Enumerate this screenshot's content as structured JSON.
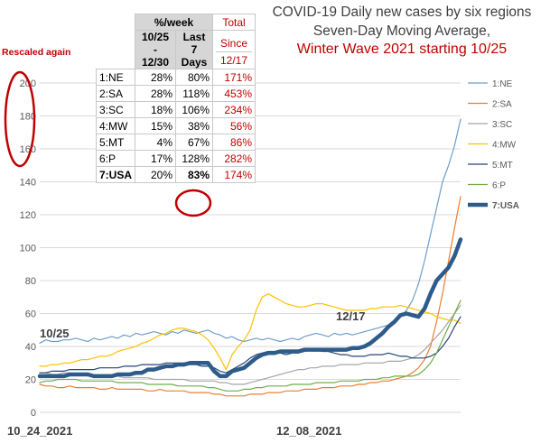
{
  "title_lines": [
    "COVID-19 Daily new cases by six regions",
    "Seven-Day Moving Average,"
  ],
  "title_red": "Winter Wave 2021 starting 10/25",
  "rescaled_note": "Rescaled again",
  "annotations": {
    "start": "10/25",
    "mid": "12/17"
  },
  "table": {
    "header_week": "%/week",
    "header_total": "Total",
    "col1_header": [
      "10/25",
      "-",
      "12/30"
    ],
    "col2_header": [
      "Last",
      "7",
      "Days"
    ],
    "col3_header": [
      "Since",
      "12/17"
    ],
    "rows": [
      {
        "region": "1:NE",
        "c1": "28%",
        "c2": "80%",
        "c3": "171%"
      },
      {
        "region": "2:SA",
        "c1": "28%",
        "c2": "118%",
        "c3": "453%"
      },
      {
        "region": "3:SC",
        "c1": "18%",
        "c2": "106%",
        "c3": "234%"
      },
      {
        "region": "4:MW",
        "c1": "15%",
        "c2": "38%",
        "c3": "56%"
      },
      {
        "region": "5:MT",
        "c1": "4%",
        "c2": "67%",
        "c3": "86%"
      },
      {
        "region": "6:P",
        "c1": "17%",
        "c2": "128%",
        "c3": "282%"
      },
      {
        "region": "7:USA",
        "c1": "20%",
        "c2": "83%",
        "c3": "174%"
      }
    ]
  },
  "chart_data": {
    "type": "line",
    "title": "COVID-19 Daily new cases by six regions Seven-Day Moving Average, Winter Wave 2021 starting 10/25",
    "xlabel": "",
    "ylabel": "",
    "x_tick_labels": [
      "10_24_2021",
      "12_08_2021"
    ],
    "x_tick_index": [
      0,
      45
    ],
    "ylim": [
      0,
      200
    ],
    "yticks": [
      0,
      20,
      40,
      60,
      80,
      100,
      120,
      140,
      160,
      180,
      200
    ],
    "grid": true,
    "legend_position": "right",
    "series": [
      {
        "name": "1:NE",
        "color": "#6d9ec8",
        "width": 1.2,
        "values": [
          42,
          44,
          43,
          43,
          44,
          44,
          45,
          44,
          43,
          45,
          44,
          45,
          46,
          45,
          47,
          46,
          48,
          47,
          48,
          49,
          48,
          47,
          49,
          48,
          50,
          49,
          48,
          49,
          50,
          48,
          47,
          45,
          46,
          44,
          43,
          44,
          45,
          44,
          45,
          44,
          43,
          44,
          45,
          44,
          46,
          47,
          48,
          47,
          46,
          48,
          47,
          48,
          47,
          48,
          49,
          50,
          51,
          52,
          53,
          55,
          58,
          62,
          68,
          78,
          92,
          108,
          124,
          140,
          150,
          162,
          178
        ]
      },
      {
        "name": "2:SA",
        "color": "#ed7d31",
        "width": 1.2,
        "values": [
          17,
          16,
          16,
          15,
          15,
          16,
          15,
          15,
          15,
          15,
          14,
          14,
          15,
          14,
          14,
          14,
          14,
          14,
          13,
          13,
          14,
          13,
          13,
          13,
          13,
          12,
          12,
          12,
          12,
          11,
          11,
          10,
          10,
          10,
          10,
          11,
          11,
          11,
          12,
          12,
          12,
          13,
          13,
          13,
          14,
          14,
          14,
          15,
          15,
          15,
          16,
          16,
          16,
          17,
          17,
          18,
          18,
          19,
          19,
          20,
          21,
          22,
          24,
          27,
          32,
          40,
          55,
          72,
          92,
          112,
          131
        ]
      },
      {
        "name": "3:SC",
        "color": "#a5a5a5",
        "width": 1.2,
        "values": [
          24,
          24,
          23,
          23,
          24,
          24,
          23,
          23,
          23,
          22,
          22,
          22,
          22,
          22,
          21,
          21,
          21,
          21,
          21,
          20,
          20,
          20,
          20,
          20,
          20,
          19,
          19,
          19,
          19,
          19,
          18,
          18,
          17,
          17,
          17,
          18,
          19,
          20,
          21,
          22,
          23,
          24,
          25,
          26,
          26,
          27,
          27,
          28,
          28,
          28,
          29,
          29,
          29,
          29,
          30,
          30,
          30,
          30,
          31,
          31,
          31,
          32,
          33,
          35,
          38,
          42,
          46,
          50,
          55,
          60,
          65
        ]
      },
      {
        "name": "4:MW",
        "color": "#ffc000",
        "width": 1.2,
        "values": [
          28,
          28,
          29,
          29,
          30,
          30,
          31,
          32,
          32,
          33,
          34,
          34,
          35,
          37,
          38,
          39,
          40,
          42,
          43,
          45,
          47,
          48,
          50,
          51,
          51,
          50,
          49,
          47,
          44,
          39,
          33,
          26,
          35,
          40,
          44,
          50,
          62,
          70,
          72,
          70,
          68,
          66,
          65,
          64,
          64,
          65,
          66,
          66,
          65,
          64,
          63,
          62,
          62,
          62,
          62,
          63,
          63,
          64,
          64,
          64,
          65,
          64,
          63,
          62,
          61,
          60,
          58,
          57,
          56,
          56,
          54
        ]
      },
      {
        "name": "5:MT",
        "color": "#264478",
        "width": 1.2,
        "values": [
          24,
          24,
          25,
          25,
          25,
          26,
          26,
          26,
          26,
          26,
          27,
          27,
          27,
          27,
          28,
          28,
          28,
          29,
          29,
          29,
          29,
          30,
          30,
          30,
          30,
          29,
          29,
          28,
          28,
          27,
          25,
          24,
          26,
          28,
          30,
          33,
          35,
          36,
          37,
          37,
          36,
          35,
          36,
          36,
          37,
          38,
          38,
          37,
          37,
          36,
          35,
          35,
          34,
          34,
          34,
          35,
          35,
          35,
          36,
          35,
          34,
          34,
          33,
          33,
          33,
          34,
          36,
          40,
          45,
          52,
          58
        ]
      },
      {
        "name": "6:P",
        "color": "#70ad47",
        "width": 1.2,
        "values": [
          18,
          19,
          19,
          20,
          20,
          20,
          20,
          19,
          19,
          19,
          19,
          19,
          19,
          18,
          18,
          18,
          18,
          18,
          17,
          17,
          17,
          17,
          17,
          16,
          16,
          16,
          16,
          16,
          15,
          15,
          14,
          13,
          13,
          13,
          14,
          14,
          15,
          15,
          16,
          16,
          16,
          16,
          17,
          17,
          17,
          17,
          18,
          18,
          18,
          18,
          19,
          19,
          19,
          19,
          20,
          20,
          20,
          21,
          21,
          22,
          22,
          22,
          22,
          23,
          26,
          30,
          36,
          44,
          52,
          60,
          68
        ]
      },
      {
        "name": "7:USA",
        "color": "#2e5c8a",
        "width": 4.5,
        "values": [
          22,
          22,
          22,
          22,
          22,
          23,
          23,
          23,
          23,
          22,
          22,
          22,
          22,
          23,
          23,
          23,
          24,
          24,
          26,
          26,
          27,
          28,
          28,
          29,
          29,
          30,
          30,
          30,
          30,
          25,
          22,
          22,
          25,
          26,
          27,
          30,
          33,
          35,
          36,
          36,
          37,
          37,
          37,
          37,
          38,
          38,
          38,
          38,
          38,
          38,
          38,
          38,
          39,
          39,
          40,
          42,
          45,
          48,
          52,
          55,
          59,
          60,
          59,
          58,
          63,
          72,
          80,
          84,
          88,
          95,
          105
        ]
      }
    ]
  }
}
